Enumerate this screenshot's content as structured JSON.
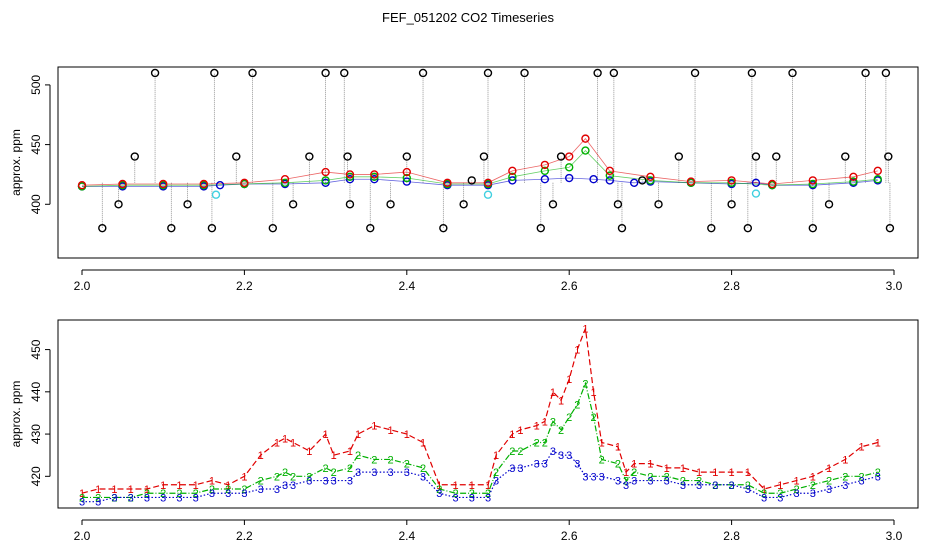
{
  "title": "FEF_051202  CO2 Timeseries",
  "colors": {
    "black": "#000000",
    "red": "#e00000",
    "green": "#00b000",
    "blue": "#0000cc",
    "cyan": "#40d0e0",
    "gray": "#808080"
  },
  "chart_data": [
    {
      "type": "scatter",
      "ylabel": "approx. ppm",
      "xlim": [
        2.0,
        3.0
      ],
      "ylim": [
        355,
        515
      ],
      "xticks": [
        "2.0",
        "2.2",
        "2.4",
        "2.6",
        "2.8",
        "3.0"
      ],
      "yticks": [
        "400",
        "450",
        "500"
      ],
      "series": [
        {
          "color": "blue",
          "x": [
            2.0,
            2.05,
            2.1,
            2.15,
            2.17,
            2.2,
            2.25,
            2.3,
            2.33,
            2.36,
            2.4,
            2.45,
            2.5,
            2.53,
            2.57,
            2.6,
            2.63,
            2.65,
            2.68,
            2.7,
            2.75,
            2.8,
            2.83,
            2.85,
            2.9,
            2.95,
            2.98
          ],
          "y": [
            415,
            415,
            415,
            415,
            416,
            417,
            417,
            418,
            421,
            421,
            419,
            416,
            416,
            420,
            421,
            422,
            421,
            420,
            418,
            419,
            418,
            417,
            418,
            416,
            416,
            418,
            420
          ]
        },
        {
          "color": "green",
          "x": [
            2.0,
            2.05,
            2.1,
            2.15,
            2.2,
            2.25,
            2.3,
            2.33,
            2.36,
            2.4,
            2.45,
            2.5,
            2.53,
            2.57,
            2.6,
            2.62,
            2.65,
            2.7,
            2.75,
            2.8,
            2.85,
            2.9,
            2.95,
            2.98
          ],
          "y": [
            415,
            416,
            416,
            416,
            417,
            418,
            420,
            423,
            423,
            422,
            417,
            417,
            423,
            428,
            431,
            445,
            424,
            420,
            418,
            418,
            416,
            417,
            419,
            421
          ]
        },
        {
          "color": "red",
          "x": [
            2.0,
            2.05,
            2.1,
            2.15,
            2.2,
            2.25,
            2.3,
            2.33,
            2.36,
            2.4,
            2.45,
            2.5,
            2.53,
            2.57,
            2.6,
            2.62,
            2.65,
            2.7,
            2.75,
            2.8,
            2.85,
            2.9,
            2.95,
            2.98
          ],
          "y": [
            416,
            417,
            417,
            417,
            418,
            421,
            427,
            425,
            425,
            427,
            418,
            418,
            428,
            433,
            440,
            455,
            428,
            423,
            419,
            420,
            417,
            420,
            423,
            428
          ]
        },
        {
          "color": "cyan",
          "x": [
            2.165,
            2.5,
            2.83
          ],
          "y": [
            408,
            408,
            409
          ]
        },
        {
          "color": "black",
          "x": [
            2.025,
            2.045,
            2.065,
            2.09,
            2.11,
            2.13,
            2.16,
            2.163,
            2.19,
            2.21,
            2.235,
            2.26,
            2.28,
            2.3,
            2.323,
            2.327,
            2.33,
            2.355,
            2.38,
            2.4,
            2.42,
            2.445,
            2.47,
            2.48,
            2.495,
            2.5,
            2.545,
            2.565,
            2.58,
            2.59,
            2.635,
            2.655,
            2.66,
            2.665,
            2.69,
            2.71,
            2.735,
            2.755,
            2.775,
            2.8,
            2.82,
            2.825,
            2.83,
            2.855,
            2.875,
            2.9,
            2.92,
            2.94,
            2.965,
            2.99,
            2.993,
            2.995
          ],
          "y": [
            380,
            400,
            440,
            510,
            380,
            400,
            380,
            510,
            440,
            510,
            380,
            400,
            440,
            510,
            510,
            440,
            400,
            380,
            400,
            440,
            510,
            380,
            400,
            420,
            440,
            510,
            510,
            380,
            400,
            440,
            510,
            510,
            400,
            380,
            420,
            400,
            440,
            510,
            380,
            400,
            380,
            510,
            440,
            440,
            510,
            380,
            400,
            440,
            510,
            510,
            440,
            380
          ]
        }
      ]
    },
    {
      "type": "line",
      "ylabel": "approx. ppm",
      "xlim": [
        2.0,
        3.0
      ],
      "ylim": [
        412.5,
        457
      ],
      "xticks": [
        "2.0",
        "2.2",
        "2.4",
        "2.6",
        "2.8",
        "3.0"
      ],
      "yticks": [
        "420",
        "430",
        "440",
        "450"
      ],
      "series": [
        {
          "name": "1",
          "color": "red",
          "style": "dashed",
          "x": [
            2.0,
            2.02,
            2.04,
            2.06,
            2.08,
            2.1,
            2.12,
            2.14,
            2.16,
            2.18,
            2.2,
            2.22,
            2.24,
            2.25,
            2.26,
            2.28,
            2.3,
            2.31,
            2.33,
            2.34,
            2.36,
            2.38,
            2.4,
            2.42,
            2.44,
            2.46,
            2.48,
            2.5,
            2.51,
            2.53,
            2.54,
            2.56,
            2.57,
            2.58,
            2.59,
            2.6,
            2.61,
            2.62,
            2.63,
            2.64,
            2.66,
            2.67,
            2.68,
            2.7,
            2.72,
            2.74,
            2.76,
            2.78,
            2.8,
            2.82,
            2.84,
            2.86,
            2.88,
            2.9,
            2.92,
            2.94,
            2.96,
            2.98
          ],
          "y": [
            416,
            417,
            417,
            417,
            417,
            418,
            418,
            418,
            419,
            418,
            420,
            425,
            428,
            429,
            428,
            426,
            430,
            425,
            426,
            430,
            432,
            431,
            430,
            428,
            418,
            418,
            418,
            418,
            425,
            430,
            431,
            432,
            433,
            440,
            438,
            443,
            450,
            455,
            440,
            428,
            427,
            421,
            423,
            423,
            422,
            422,
            421,
            421,
            421,
            421,
            417,
            418,
            419,
            420,
            422,
            424,
            427,
            428
          ]
        },
        {
          "name": "2",
          "color": "green",
          "style": "dashdot",
          "x": [
            2.0,
            2.02,
            2.04,
            2.06,
            2.08,
            2.1,
            2.12,
            2.14,
            2.16,
            2.18,
            2.2,
            2.22,
            2.24,
            2.25,
            2.26,
            2.28,
            2.3,
            2.31,
            2.33,
            2.34,
            2.36,
            2.38,
            2.4,
            2.42,
            2.44,
            2.46,
            2.48,
            2.5,
            2.51,
            2.53,
            2.54,
            2.56,
            2.57,
            2.58,
            2.59,
            2.6,
            2.61,
            2.62,
            2.63,
            2.64,
            2.66,
            2.67,
            2.68,
            2.7,
            2.72,
            2.74,
            2.76,
            2.78,
            2.8,
            2.82,
            2.84,
            2.86,
            2.88,
            2.9,
            2.92,
            2.94,
            2.96,
            2.98
          ],
          "y": [
            415,
            415,
            415,
            415,
            416,
            416,
            416,
            416,
            417,
            417,
            417,
            419,
            420,
            421,
            420,
            420,
            422,
            421,
            422,
            425,
            424,
            424,
            423,
            422,
            417,
            416,
            416,
            416,
            421,
            426,
            426,
            428,
            428,
            433,
            431,
            434,
            437,
            442,
            434,
            424,
            423,
            419,
            421,
            420,
            420,
            419,
            419,
            418,
            418,
            418,
            416,
            416,
            417,
            418,
            419,
            420,
            420,
            421
          ]
        },
        {
          "name": "3",
          "color": "blue",
          "style": "dotted",
          "x": [
            2.0,
            2.02,
            2.04,
            2.06,
            2.08,
            2.1,
            2.12,
            2.14,
            2.16,
            2.18,
            2.2,
            2.22,
            2.24,
            2.25,
            2.26,
            2.28,
            2.3,
            2.31,
            2.33,
            2.34,
            2.36,
            2.38,
            2.4,
            2.42,
            2.44,
            2.46,
            2.48,
            2.5,
            2.51,
            2.53,
            2.54,
            2.56,
            2.57,
            2.58,
            2.59,
            2.6,
            2.61,
            2.62,
            2.63,
            2.64,
            2.66,
            2.67,
            2.68,
            2.7,
            2.72,
            2.74,
            2.76,
            2.78,
            2.8,
            2.82,
            2.84,
            2.86,
            2.88,
            2.9,
            2.92,
            2.94,
            2.96,
            2.98
          ],
          "y": [
            414,
            414,
            415,
            415,
            415,
            415,
            415,
            415,
            416,
            416,
            416,
            417,
            417,
            418,
            418,
            419,
            419,
            419,
            419,
            421,
            421,
            421,
            421,
            420,
            416,
            415,
            415,
            415,
            419,
            422,
            422,
            423,
            423,
            426,
            425,
            425,
            423,
            420,
            420,
            420,
            419,
            418,
            419,
            419,
            419,
            418,
            418,
            418,
            418,
            417,
            415,
            415,
            416,
            416,
            417,
            418,
            419,
            420
          ]
        }
      ]
    }
  ]
}
